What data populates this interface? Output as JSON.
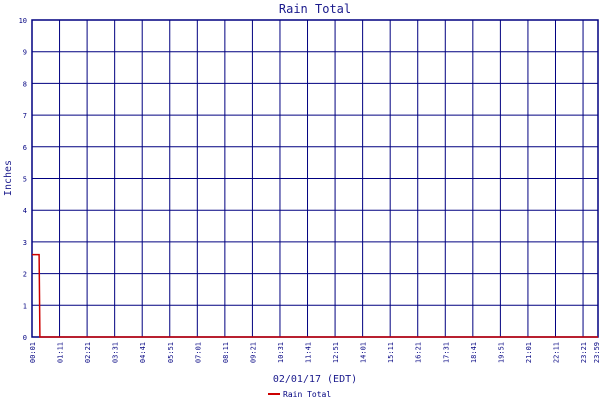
{
  "chart_data": {
    "type": "line",
    "title": "Rain Total",
    "xlabel": "02/01/17 (EDT)",
    "ylabel": "Inches",
    "ylim": [
      0,
      10
    ],
    "yticks": [
      "0",
      "1",
      "2",
      "3",
      "4",
      "5",
      "6",
      "7",
      "8",
      "9",
      "10"
    ],
    "xticks": [
      "00:01",
      "01:11",
      "02:21",
      "03:31",
      "04:41",
      "05:51",
      "07:01",
      "08:11",
      "09:21",
      "10:31",
      "11:41",
      "12:51",
      "14:01",
      "15:11",
      "16:21",
      "17:31",
      "18:41",
      "19:51",
      "21:01",
      "22:11",
      "23:21"
    ],
    "xend_label": "23:59",
    "xlim": [
      1,
      1439
    ],
    "grid": true,
    "legend": "bottom-center",
    "series": [
      {
        "name": "Rain Total",
        "color": "#cc0000",
        "x": [
          1,
          19,
          20,
          20,
          21,
          1439
        ],
        "y": [
          2.6,
          2.6,
          1.35,
          1.35,
          0,
          0
        ]
      }
    ]
  }
}
